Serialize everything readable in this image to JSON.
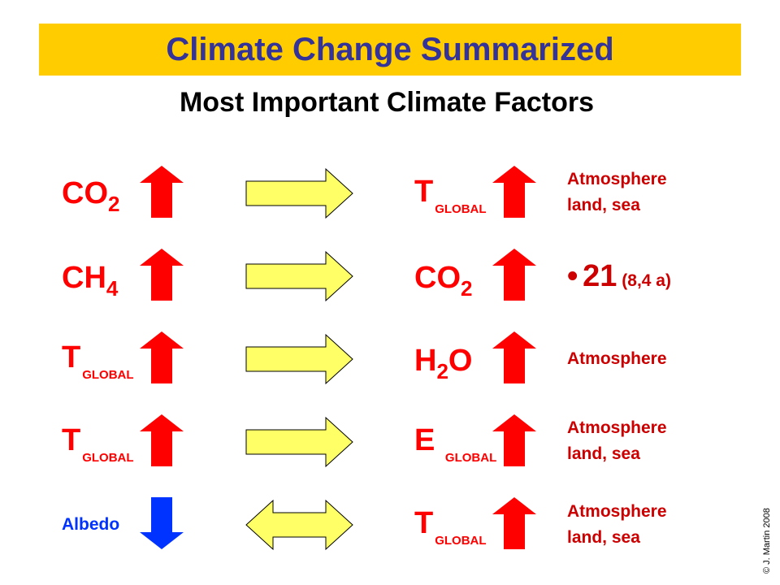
{
  "header": {
    "title": "Climate Change Summarized",
    "subtitle": "Most Important Climate Factors"
  },
  "colors": {
    "title_bar": "#ffcc00",
    "title_text": "#333399",
    "label_red": "#ff0000",
    "note_red": "#cc0000",
    "arrow_up": "#ff0000",
    "arrow_down": "#0033ff",
    "connector": "#ffff66"
  },
  "rows": [
    {
      "cause": {
        "main": "CO",
        "sub": "2"
      },
      "cause_direction": "up",
      "connector": "right-arrow",
      "effect": {
        "main": "T",
        "sub": "GLOBAL"
      },
      "effect_direction": "up",
      "note": {
        "line1": "Atmosphere",
        "line2": "land, sea"
      }
    },
    {
      "cause": {
        "main": "CH",
        "sub": "4"
      },
      "cause_direction": "up",
      "connector": "right-arrow",
      "effect": {
        "main": "CO",
        "sub": "2"
      },
      "effect_direction": "up",
      "note": {
        "bullet": "•",
        "value": "21",
        "detail": "(8,4 a)"
      }
    },
    {
      "cause": {
        "main": "T",
        "sub": "GLOBAL"
      },
      "cause_direction": "up",
      "connector": "right-arrow",
      "effect": {
        "main_a": "H",
        "sub": "2",
        "main_b": "O"
      },
      "effect_direction": "up",
      "note": {
        "line1": "Atmosphere"
      }
    },
    {
      "cause": {
        "main": "T",
        "sub": "GLOBAL"
      },
      "cause_direction": "up",
      "connector": "right-arrow",
      "effect": {
        "main": "E",
        "sub": "GLOBAL"
      },
      "effect_direction": "up",
      "note": {
        "line1": "Atmosphere",
        "line2": "land, sea"
      }
    },
    {
      "cause": {
        "main": "Albedo"
      },
      "cause_direction": "down",
      "connector": "double-arrow",
      "effect": {
        "main": "T",
        "sub": "GLOBAL"
      },
      "effect_direction": "up",
      "note": {
        "line1": "Atmosphere",
        "line2": "land, sea"
      }
    }
  ],
  "footer": {
    "copyright": "© J. Martin 2008"
  }
}
